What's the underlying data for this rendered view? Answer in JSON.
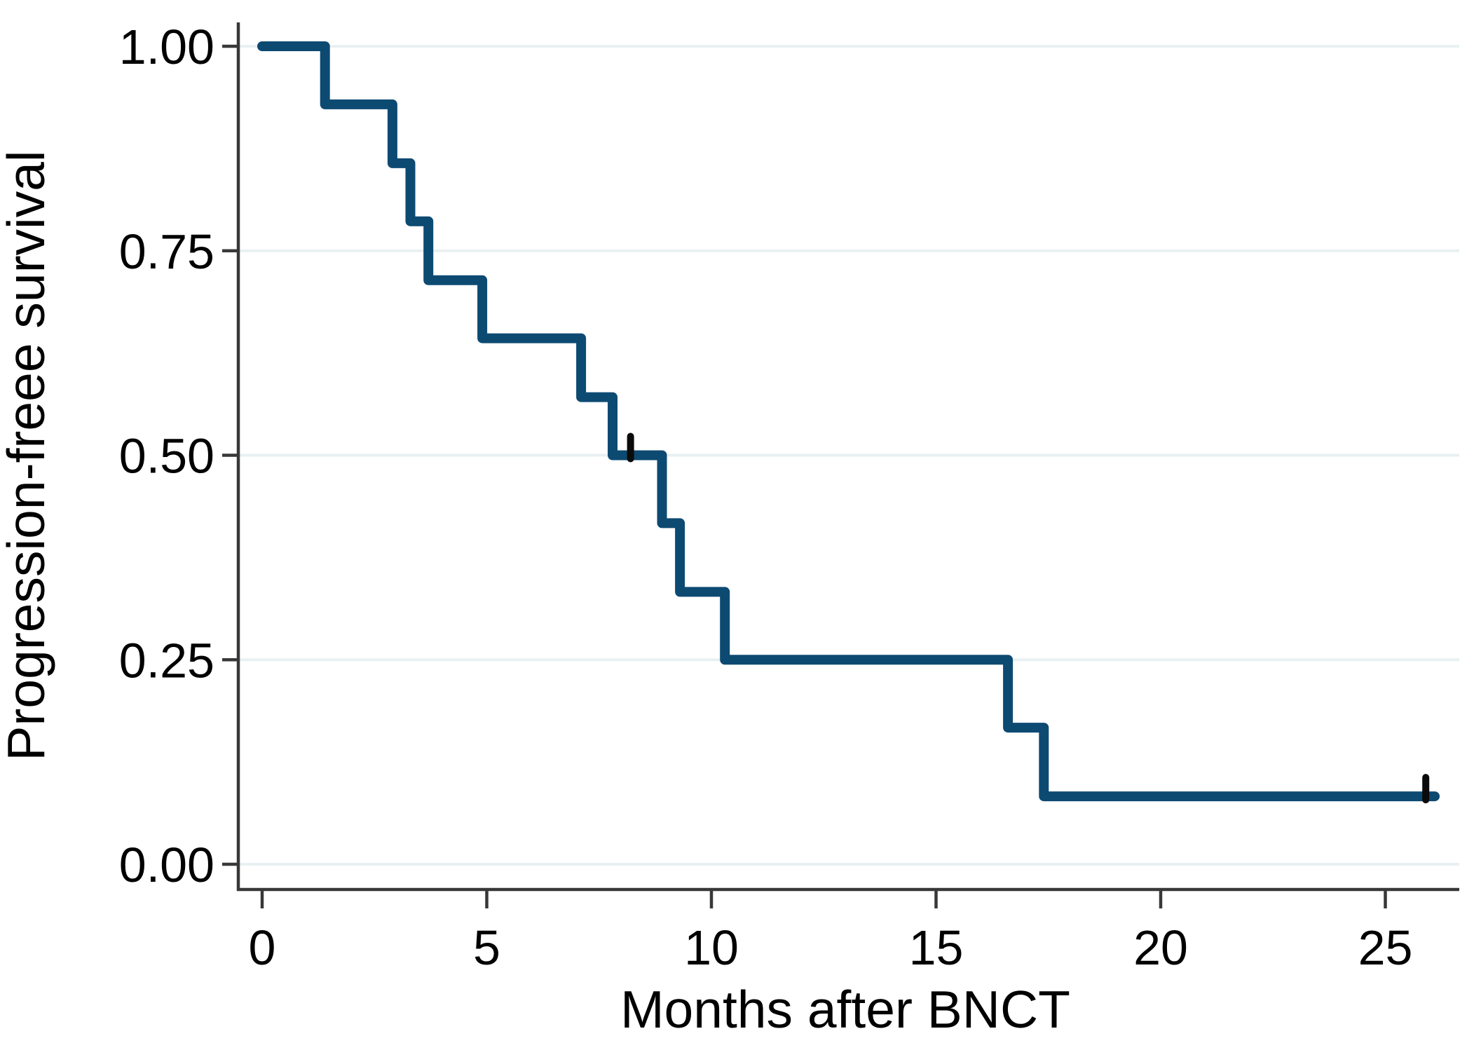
{
  "figure": {
    "background": "#ffffff",
    "y_axis_title": "Progression-freee survival",
    "x_axis_title": "Months after BNCT",
    "y_tick_labels": [
      "1.00",
      "0.75",
      "0.50",
      "0.25",
      "0.00"
    ],
    "y_tick_values": [
      1.0,
      0.75,
      0.5,
      0.25,
      0.0
    ],
    "x_tick_labels": [
      "0",
      "5",
      "10",
      "15",
      "20",
      "25"
    ],
    "x_tick_values": [
      0,
      5,
      10,
      15,
      20,
      25
    ]
  },
  "chart_data": {
    "type": "line",
    "subtype": "kaplan_meier_step",
    "title": "",
    "xlabel": "Months after BNCT",
    "ylabel": "Progression-freee survival",
    "xlim": [
      0,
      26.5
    ],
    "ylim": [
      0,
      1
    ],
    "grid": true,
    "legend": false,
    "x_ticks": [
      0,
      5,
      10,
      15,
      20,
      25
    ],
    "y_ticks": [
      0.0,
      0.25,
      0.5,
      0.75,
      1.0
    ],
    "series": [
      {
        "name": "Progression-free survival",
        "color": "#0d4a72",
        "steps": [
          [
            0,
            1.0
          ],
          [
            1.4,
            0.929
          ],
          [
            2.9,
            0.857
          ],
          [
            3.3,
            0.786
          ],
          [
            3.7,
            0.714
          ],
          [
            4.9,
            0.643
          ],
          [
            7.1,
            0.571
          ],
          [
            7.8,
            0.5
          ],
          [
            8.9,
            0.417
          ],
          [
            9.3,
            0.333
          ],
          [
            10.3,
            0.25
          ],
          [
            16.6,
            0.167
          ],
          [
            17.4,
            0.083
          ]
        ],
        "end_time": 26.1,
        "censored": [
          [
            8.2,
            0.5
          ],
          [
            25.9,
            0.083
          ]
        ]
      }
    ],
    "style_colors": {
      "gridline": "#e8f0f2",
      "axis": "#383838",
      "label_text": "#000000",
      "censor_mark": "#0b0b0b"
    }
  }
}
